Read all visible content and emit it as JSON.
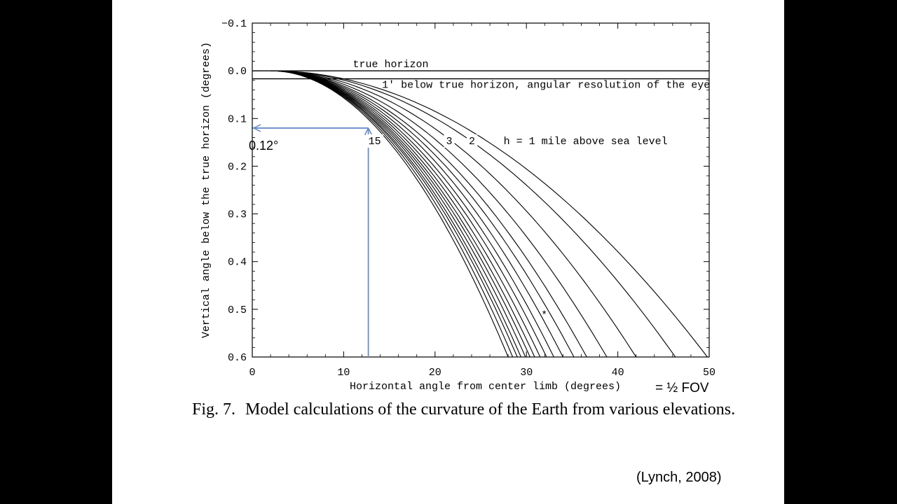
{
  "caption": {
    "label": "Fig. 7.",
    "text": "Model calculations of the curvature of the Earth from various elevations."
  },
  "citation": "(Lynch, 2008)",
  "annotations": {
    "readout_value": "0.12°",
    "fov_note": "= ½ FOV"
  },
  "chart_data": {
    "type": "line",
    "title": "",
    "xlabel": "Horizontal angle from center limb (degrees)",
    "ylabel": "Vertical angle below the true horizon (degrees)",
    "xlim": [
      0,
      50
    ],
    "ylim": [
      -0.1,
      0.6
    ],
    "y_inverted": true,
    "grid": false,
    "x_ticks": [
      0,
      10,
      20,
      30,
      40,
      50
    ],
    "x_tick_labels": [
      "0",
      "10",
      "20",
      "30",
      "40",
      "50"
    ],
    "y_ticks": [
      -0.1,
      0.0,
      0.1,
      0.2,
      0.3,
      0.4,
      0.5,
      0.6
    ],
    "y_tick_labels": [
      "−0.1",
      "0.0",
      "0.1",
      "0.2",
      "0.3",
      "0.4",
      "0.5",
      "0.6"
    ],
    "reference_lines": [
      {
        "y": 0.0,
        "label": "true horizon"
      },
      {
        "y": 0.0167,
        "label": "1' below true horizon, angular resolution of the eye"
      }
    ],
    "curves": {
      "start_x": 2,
      "x_at_y06": [
        49.8,
        46.3,
        42.0,
        38.8,
        36.6,
        35.2,
        34.0,
        33.0,
        32.2,
        31.5,
        30.9,
        30.4,
        29.9,
        29.4,
        29.0,
        28.5,
        28.0
      ]
    },
    "curve_labels": [
      {
        "text": "h = 1 mile above sea level",
        "x": 27.5,
        "y": 0.145
      },
      {
        "text": "2",
        "x": 23.7,
        "y": 0.145
      },
      {
        "text": "3",
        "x": 21.2,
        "y": 0.145
      },
      {
        "text": "15",
        "x": 12.7,
        "y": 0.145
      },
      {
        "text": "*",
        "x": 31.6,
        "y": 0.51
      }
    ],
    "marker": {
      "x": 12.7,
      "y": 0.12
    }
  }
}
